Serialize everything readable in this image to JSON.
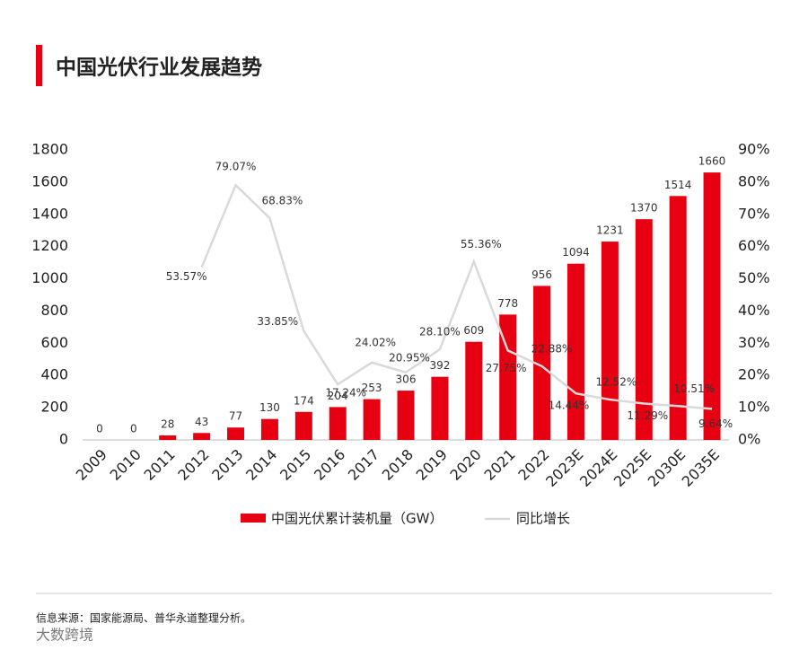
{
  "chart_data": {
    "type": "bar",
    "title": "中国光伏行业发展趋势",
    "categories": [
      "2009",
      "2010",
      "2011",
      "2012",
      "2013",
      "2014",
      "2015",
      "2016",
      "2017",
      "2018",
      "2019",
      "2020",
      "2021",
      "2022",
      "2023E",
      "2024E",
      "2025E",
      "2030E",
      "2035E"
    ],
    "series": [
      {
        "name": "中国光伏累计装机量（GW）",
        "color": "#e60012",
        "type": "bar",
        "values": [
          0,
          0,
          28,
          43,
          77,
          130,
          174,
          204,
          253,
          306,
          392,
          609,
          778,
          956,
          1094,
          1231,
          1370,
          1514,
          1660
        ]
      },
      {
        "name": "同比增长",
        "color": "#d9d9d9",
        "type": "line",
        "axis": "y2",
        "values": [
          null,
          null,
          null,
          53.57,
          79.07,
          68.83,
          33.85,
          17.24,
          24.02,
          20.95,
          28.1,
          55.36,
          27.75,
          22.88,
          14.44,
          12.52,
          11.29,
          10.51,
          9.64
        ],
        "value_labels": [
          null,
          null,
          null,
          "53.57%",
          "79.07%",
          "68.83%",
          "33.85%",
          "17.24%",
          "24.02%",
          "20.95%",
          "28.10%",
          "55.36%",
          "27.75%",
          "22.88%",
          "14.44%",
          "12.52%",
          "11.29%",
          "10.51%",
          "9.64%"
        ]
      }
    ],
    "ylim": [
      0,
      1800
    ],
    "yticks": [
      0,
      200,
      400,
      600,
      800,
      1000,
      1200,
      1400,
      1600,
      1800
    ],
    "y2lim": [
      0,
      90
    ],
    "y2ticks": [
      {
        "value": 0,
        "label": "0%"
      },
      {
        "value": 10,
        "label": "10%"
      },
      {
        "value": 20,
        "label": "20%"
      },
      {
        "value": 30,
        "label": "30%"
      },
      {
        "value": 40,
        "label": "40%"
      },
      {
        "value": 50,
        "label": "50%"
      },
      {
        "value": 60,
        "label": "60%"
      },
      {
        "value": 70,
        "label": "70%"
      },
      {
        "value": 80,
        "label": "80%"
      },
      {
        "value": 90,
        "label": "90%"
      }
    ],
    "legend": "bottom",
    "source": "信息来源：国家能源局、普华永道整理分析。",
    "watermark": "大数跨境"
  }
}
